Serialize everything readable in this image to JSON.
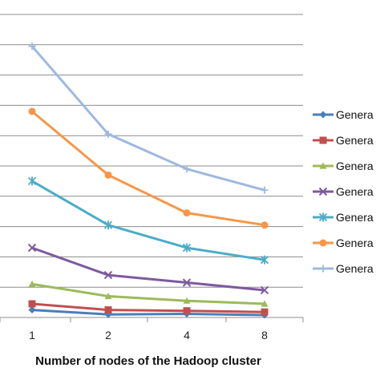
{
  "chart_data": {
    "type": "line",
    "title": "",
    "xlabel": "Number of nodes of the Hadoop cluster",
    "ylabel": "",
    "categories": [
      "1",
      "2",
      "4",
      "8"
    ],
    "ylim": [
      0,
      10
    ],
    "grid": true,
    "legend_position": "right",
    "series": [
      {
        "name": "Genera",
        "color": "#4a7ebb",
        "marker": "diamond",
        "values": [
          0.25,
          0.1,
          0.12,
          0.08
        ]
      },
      {
        "name": "Genera",
        "color": "#c0504d",
        "marker": "square",
        "values": [
          0.45,
          0.25,
          0.22,
          0.18
        ]
      },
      {
        "name": "Genera",
        "color": "#9bbb59",
        "marker": "triangle",
        "values": [
          1.1,
          0.7,
          0.55,
          0.45
        ]
      },
      {
        "name": "Genera",
        "color": "#7d5a9e",
        "marker": "x",
        "values": [
          2.3,
          1.4,
          1.15,
          0.9
        ]
      },
      {
        "name": "Genera",
        "color": "#4bacc6",
        "marker": "star",
        "values": [
          4.5,
          3.05,
          2.3,
          1.9
        ]
      },
      {
        "name": "Genera",
        "color": "#f79646",
        "marker": "circle",
        "values": [
          6.8,
          4.7,
          3.45,
          3.05
        ]
      },
      {
        "name": "Genera",
        "color": "#9db9e0",
        "marker": "plus",
        "values": [
          8.95,
          6.05,
          4.9,
          4.2
        ]
      }
    ]
  }
}
